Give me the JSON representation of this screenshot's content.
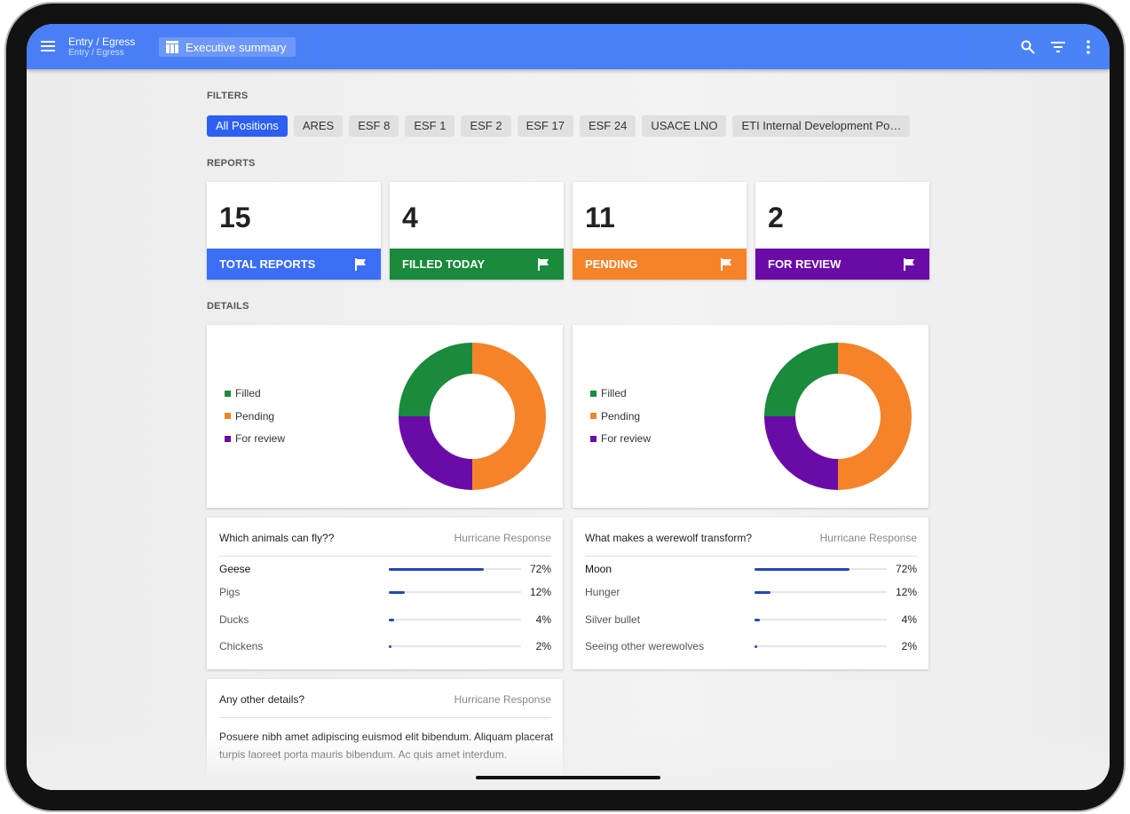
{
  "header": {
    "title": "Entry / Egress",
    "subtitle": "Entry / Egress",
    "view": "Executive summary"
  },
  "filters": {
    "label": "FILTERS",
    "chips": [
      "All Positions",
      "ARES",
      "ESF 8",
      "ESF 1",
      "ESF 2",
      "ESF 17",
      "ESF 24",
      "USACE LNO",
      "ETI Internal Development Po…"
    ],
    "active": 0
  },
  "reports": {
    "label": "REPORTS",
    "cards": [
      {
        "value": 15,
        "label": "TOTAL REPORTS",
        "color": "#3b6ef5"
      },
      {
        "value": 4,
        "label": "FILLED TODAY",
        "color": "#1a8a3c"
      },
      {
        "value": 11,
        "label": "PENDING",
        "color": "#f5832a"
      },
      {
        "value": 2,
        "label": "FOR REVIEW",
        "color": "#6a0ba8"
      }
    ]
  },
  "details": {
    "label": "DETAILS",
    "donuts": [
      {
        "legend": [
          "Filled",
          "Pending",
          "For review"
        ],
        "values": [
          25,
          50,
          25
        ],
        "colors": [
          "#1a8a3c",
          "#f5832a",
          "#6a0ba8"
        ]
      },
      {
        "legend": [
          "Filled",
          "Pending",
          "For review"
        ],
        "values": [
          25,
          50,
          25
        ],
        "colors": [
          "#1a8a3c",
          "#f5832a",
          "#6a0ba8"
        ]
      }
    ],
    "surveys": [
      {
        "question": "Which animals can fly??",
        "source": "Hurricane Response",
        "options": [
          {
            "label": "Geese",
            "value": 72,
            "value_label": "72%"
          },
          {
            "label": "Pigs",
            "value": 12,
            "value_label": "12%"
          },
          {
            "label": "Ducks",
            "value": 4,
            "value_label": "4%"
          },
          {
            "label": "Chickens",
            "value": 2,
            "value_label": "2%"
          }
        ]
      },
      {
        "question": "What makes a werewolf transform?",
        "source": "Hurricane Response",
        "options": [
          {
            "label": "Moon",
            "value": 72,
            "value_label": "72%"
          },
          {
            "label": "Hunger",
            "value": 12,
            "value_label": "12%"
          },
          {
            "label": "Silver bullet",
            "value": 4,
            "value_label": "4%"
          },
          {
            "label": "Seeing other werewolves",
            "value": 2,
            "value_label": "2%"
          }
        ]
      }
    ],
    "text_card": {
      "question": "Any other details?",
      "source": "Hurricane Response",
      "text": "Posuere nibh amet adipiscing euismod elit bibendum. Aliquam placerat turpis laoreet porta mauris bibendum. Ac quis amet interdum."
    }
  }
}
